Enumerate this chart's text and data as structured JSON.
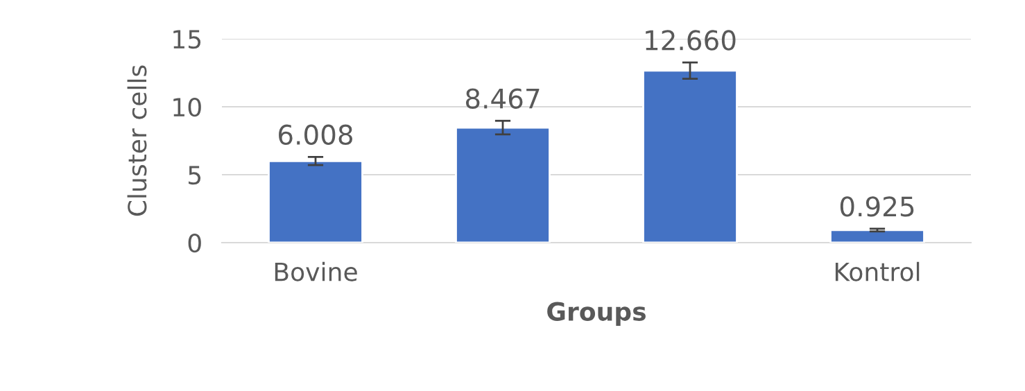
{
  "chart_data": {
    "type": "bar",
    "xlabel": "Groups",
    "ylabel": "Cluster cells",
    "categories": [
      "Bovine",
      null,
      null,
      "Kontrol"
    ],
    "values": [
      6.008,
      8.467,
      12.66,
      0.925
    ],
    "color": "#4472c4",
    "errors": [
      0.3,
      0.5,
      0.6,
      0.1
    ],
    "value_labels": [
      "6.008",
      "8.467",
      "12.660",
      "0.925"
    ],
    "ylim": [
      0,
      15
    ],
    "yticks": [
      0,
      5,
      10,
      15
    ],
    "grid": "y"
  }
}
